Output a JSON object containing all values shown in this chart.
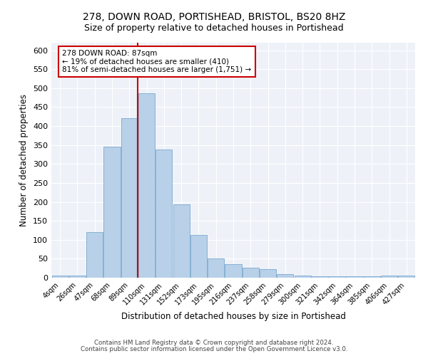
{
  "title": "278, DOWN ROAD, PORTISHEAD, BRISTOL, BS20 8HZ",
  "subtitle": "Size of property relative to detached houses in Portishead",
  "xlabel": "Distribution of detached houses by size in Portishead",
  "ylabel": "Number of detached properties",
  "categories": [
    "4sqm",
    "26sqm",
    "47sqm",
    "68sqm",
    "89sqm",
    "110sqm",
    "131sqm",
    "152sqm",
    "173sqm",
    "195sqm",
    "216sqm",
    "237sqm",
    "258sqm",
    "279sqm",
    "300sqm",
    "321sqm",
    "342sqm",
    "364sqm",
    "385sqm",
    "406sqm",
    "427sqm"
  ],
  "values": [
    6,
    6,
    120,
    345,
    420,
    487,
    338,
    193,
    112,
    50,
    35,
    27,
    22,
    10,
    5,
    4,
    4,
    4,
    4,
    5,
    5
  ],
  "bar_color": "#b8d0e8",
  "bar_edge_color": "#7aaad0",
  "vline_index": 4.5,
  "marker_label": "278 DOWN ROAD: 87sqm",
  "annotation_line1": "← 19% of detached houses are smaller (410)",
  "annotation_line2": "81% of semi-detached houses are larger (1,751) →",
  "annotation_box_color": "#ffffff",
  "annotation_box_edge": "#cc0000",
  "vline_color": "#cc0000",
  "ylim": [
    0,
    620
  ],
  "yticks": [
    0,
    50,
    100,
    150,
    200,
    250,
    300,
    350,
    400,
    450,
    500,
    550,
    600
  ],
  "bg_color": "#eef2f8",
  "grid_color": "#ffffff",
  "footer1": "Contains HM Land Registry data © Crown copyright and database right 2024.",
  "footer2": "Contains public sector information licensed under the Open Government Licence v3.0.",
  "title_fontsize": 10,
  "subtitle_fontsize": 9,
  "xlabel_fontsize": 8.5,
  "ylabel_fontsize": 8.5
}
